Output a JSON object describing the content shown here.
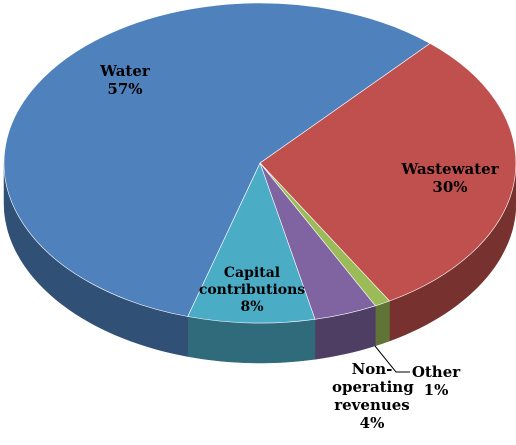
{
  "chart_data": {
    "type": "pie3d",
    "categories": [
      "Wastewater",
      "Other",
      "Non-operating revenues",
      "Capital contributions",
      "Water"
    ],
    "values": [
      30,
      1,
      4,
      8,
      57
    ],
    "value_labels": [
      "30%",
      "1%",
      "4%",
      "8%",
      "57%"
    ],
    "colors": [
      "#c0504d",
      "#9bbb59",
      "#8064a2",
      "#4bacc6",
      "#4f81bd"
    ]
  }
}
